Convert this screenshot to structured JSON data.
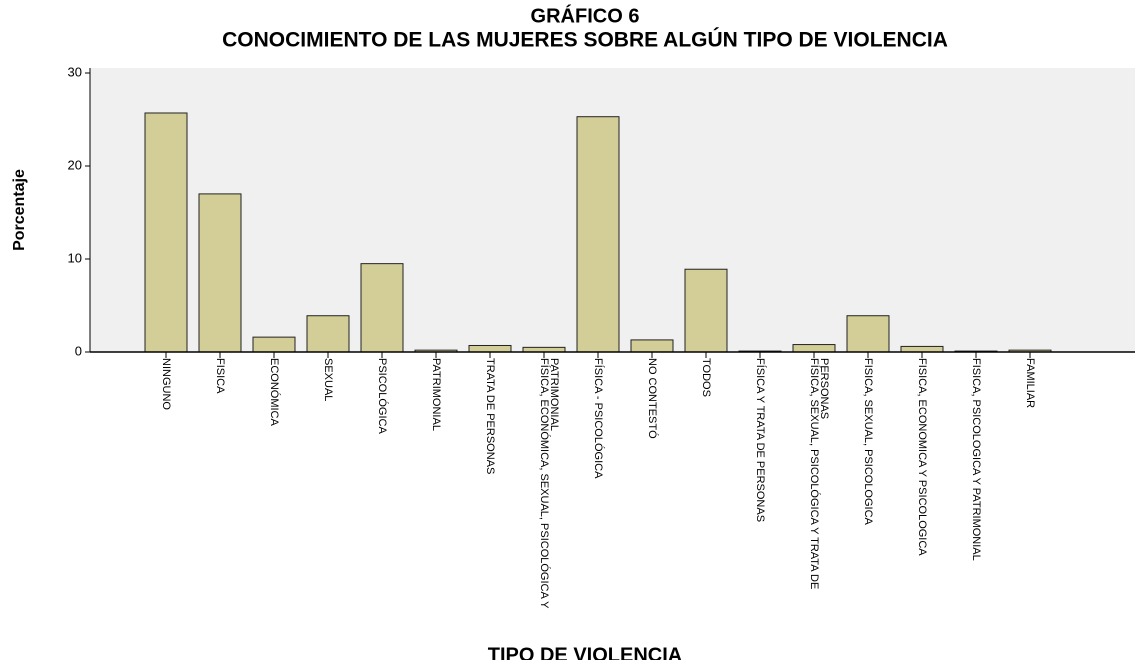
{
  "chart_data": {
    "type": "bar",
    "title": "GRÁFICO 6",
    "subtitle": "CONOCIMIENTO DE LAS MUJERES SOBRE ALGÚN TIPO DE VIOLENCIA",
    "y_label": "Porcentaje",
    "x_label": "TIPO DE VIOLENCIA",
    "categories": [
      "NINGUNO",
      "FISICA",
      "ECONÓMICA",
      "SEXUAL",
      "PSICOLÓGICA",
      "PATRIMONIAL",
      "TRATA DE PERSONAS",
      "FÍSICA, ECONÓMICA, SEXUAL, PSICOLÓGICA Y PATRIMONIAL",
      "FÍSICA - PSICOLÓGICA",
      "NO CONTESTÓ",
      "TODOS",
      "FÍSICA Y TRATA DE PERSONAS",
      "FÍSICA, SEXUAL, PSICOLÓGICA Y TRATA DE PERSONAS",
      "FISICA, SEXUAL, PSICOLOGICA",
      "FISICA, ECONOMICA Y PSICOLOGICA",
      "FISICA, PSICOLOGICA Y PATRIMONIAL",
      "FAMILIAR"
    ],
    "values": [
      25.7,
      17.0,
      1.6,
      3.9,
      9.5,
      0.2,
      0.7,
      0.5,
      25.3,
      1.3,
      8.9,
      0.1,
      0.8,
      3.9,
      0.6,
      0.1,
      0.2
    ],
    "color": "#d3ce97",
    "ylim": [
      0,
      30
    ],
    "yticks": [
      0,
      10,
      20,
      30
    ],
    "grid": false
  }
}
